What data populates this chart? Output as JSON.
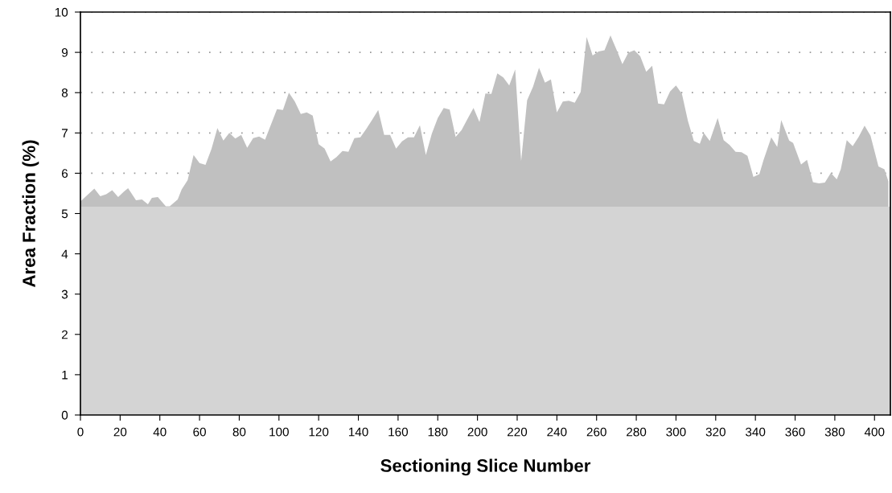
{
  "chart_data": {
    "type": "area",
    "xlabel": "Sectioning Slice Number",
    "ylabel": "Area Fraction (%)",
    "xlim": [
      0,
      408
    ],
    "ylim": [
      0,
      10
    ],
    "xticks": [
      0,
      20,
      40,
      60,
      80,
      100,
      120,
      140,
      160,
      180,
      200,
      220,
      240,
      260,
      280,
      300,
      320,
      340,
      360,
      380,
      400
    ],
    "yticks": [
      0,
      1,
      2,
      3,
      4,
      5,
      6,
      7,
      8,
      9,
      10
    ],
    "grid": "y",
    "legend": false,
    "series": [
      {
        "color": "#c0c0c0",
        "x": [
          0,
          7,
          10,
          13,
          16,
          19,
          22,
          24,
          28,
          31,
          34,
          36,
          39,
          43,
          45,
          49,
          51,
          54,
          57,
          60,
          63,
          66,
          69,
          72,
          75,
          78,
          81,
          84,
          87,
          90,
          93,
          96,
          99,
          102,
          105,
          108,
          111,
          114,
          117,
          120,
          123,
          126,
          129,
          132,
          135,
          138,
          141,
          144,
          147,
          150,
          153,
          156,
          159,
          162,
          165,
          168,
          171,
          174,
          177,
          180,
          183,
          186,
          189,
          192,
          195,
          198,
          201,
          204,
          207,
          210,
          213,
          216,
          219,
          222,
          225,
          228,
          231,
          234,
          237,
          240,
          243,
          246,
          249,
          252,
          255,
          258,
          261,
          264,
          267,
          270,
          273,
          276,
          279,
          282,
          285,
          288,
          291,
          294,
          297,
          300,
          303,
          306,
          309,
          312,
          314,
          317,
          321,
          324,
          327,
          330,
          333,
          336,
          339,
          342,
          344,
          348,
          351,
          353,
          357,
          359,
          363,
          366,
          369,
          372,
          375,
          378,
          381,
          383,
          386,
          389,
          392,
          395,
          398,
          402,
          405,
          407
        ],
        "values": [
          5.3,
          5.62,
          5.43,
          5.48,
          5.58,
          5.41,
          5.55,
          5.63,
          5.33,
          5.35,
          5.23,
          5.39,
          5.41,
          5.18,
          5.18,
          5.35,
          5.6,
          5.83,
          6.45,
          6.25,
          6.21,
          6.6,
          7.12,
          6.81,
          7.0,
          6.86,
          6.95,
          6.63,
          6.87,
          6.91,
          6.83,
          7.21,
          7.59,
          7.57,
          8.0,
          7.78,
          7.47,
          7.51,
          7.43,
          6.72,
          6.61,
          6.29,
          6.4,
          6.55,
          6.53,
          6.87,
          6.89,
          7.1,
          7.33,
          7.57,
          6.95,
          6.95,
          6.61,
          6.79,
          6.89,
          6.89,
          7.19,
          6.45,
          6.98,
          7.37,
          7.62,
          7.58,
          6.9,
          7.07,
          7.35,
          7.62,
          7.27,
          7.98,
          7.97,
          8.48,
          8.38,
          8.18,
          8.58,
          6.3,
          7.81,
          8.15,
          8.62,
          8.25,
          8.33,
          7.51,
          7.78,
          7.8,
          7.75,
          8.02,
          9.38,
          8.92,
          9.02,
          9.05,
          9.42,
          9.07,
          8.71,
          8.99,
          9.05,
          8.9,
          8.52,
          8.67,
          7.73,
          7.71,
          8.03,
          8.18,
          7.97,
          7.3,
          6.8,
          6.73,
          7.0,
          6.8,
          7.37,
          6.82,
          6.7,
          6.53,
          6.52,
          6.43,
          5.91,
          5.98,
          6.31,
          6.89,
          6.65,
          7.32,
          6.81,
          6.75,
          6.22,
          6.33,
          5.78,
          5.75,
          5.77,
          6.01,
          5.85,
          6.1,
          6.82,
          6.67,
          6.9,
          7.18,
          6.93,
          6.17,
          6.1,
          5.8
        ]
      },
      {
        "color": "#d4d4d4",
        "x": [
          0,
          408
        ],
        "values": [
          5.17,
          5.17
        ]
      }
    ]
  }
}
